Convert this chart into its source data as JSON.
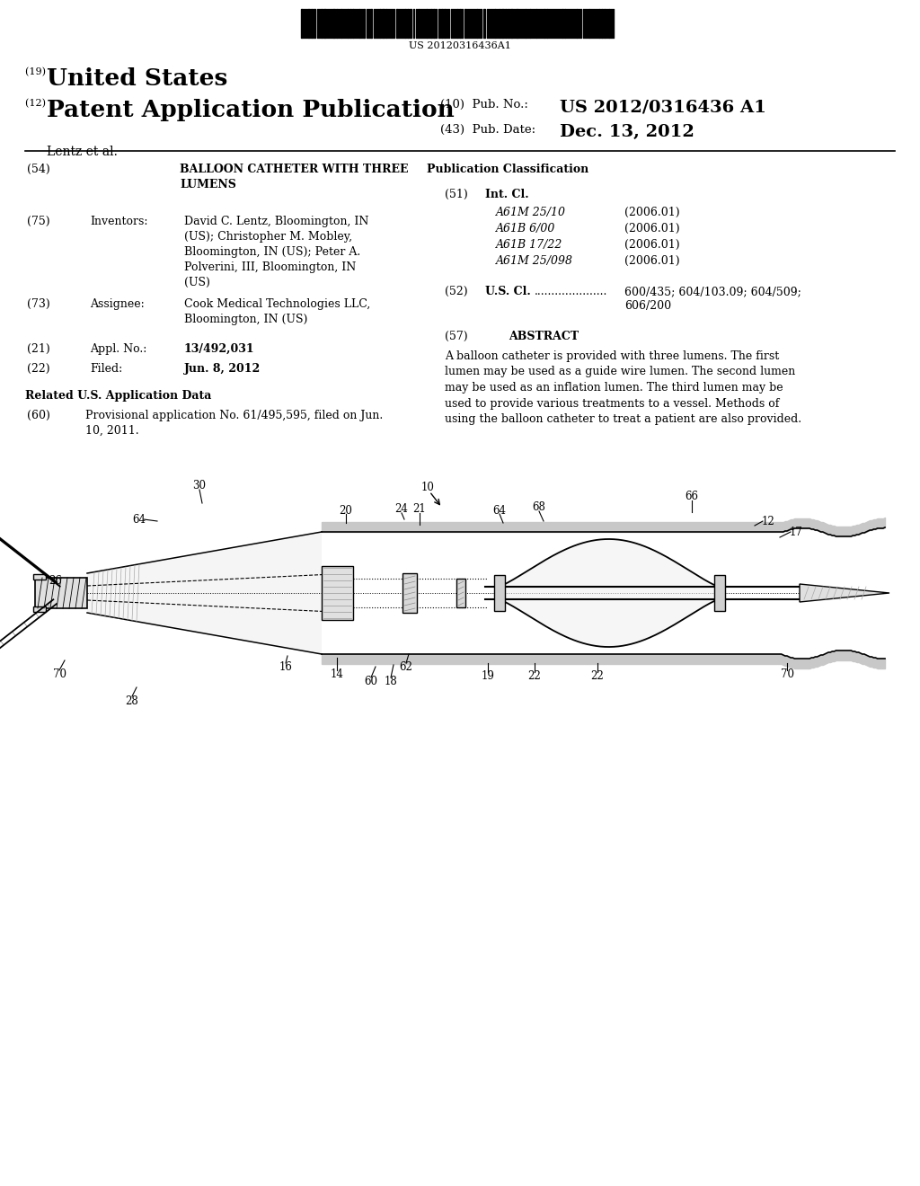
{
  "bg_color": "#ffffff",
  "barcode_text": "US 20120316436A1",
  "title19_prefix": "(19) ",
  "title19_text": "United States",
  "title12_prefix": "(12) ",
  "title12_text": "Patent Application Publication",
  "authors": "Lentz et al.",
  "pub_no_label": "(10)  Pub. No.:",
  "pub_no": "US 2012/0316436 A1",
  "pub_date_label": "(43)  Pub. Date:",
  "pub_date": "Dec. 13, 2012",
  "field54_label": "(54)",
  "field54": "BALLOON CATHETER WITH THREE\nLUMENS",
  "field75_label": "(75)",
  "field75_title": "Inventors:",
  "field75_text": "David C. Lentz, Bloomington, IN\n(US); Christopher M. Mobley,\nBloomington, IN (US); Peter A.\nPolverini, III, Bloomington, IN\n(US)",
  "field73_label": "(73)",
  "field73_title": "Assignee:",
  "field73_text": "Cook Medical Technologies LLC,\nBloomington, IN (US)",
  "field21_label": "(21)",
  "field21_title": "Appl. No.:",
  "field21_text": "13/492,031",
  "field22_label": "(22)",
  "field22_title": "Filed:",
  "field22_text": "Jun. 8, 2012",
  "related_title": "Related U.S. Application Data",
  "field60_label": "(60)",
  "field60_text": "Provisional application No. 61/495,595, filed on Jun.\n10, 2011.",
  "pub_class_title": "Publication Classification",
  "field51_label": "(51)",
  "field51_title": "Int. Cl.",
  "int_cl_items": [
    [
      "A61M 25/10",
      "(2006.01)"
    ],
    [
      "A61B 6/00",
      "(2006.01)"
    ],
    [
      "A61B 17/22",
      "(2006.01)"
    ],
    [
      "A61M 25/098",
      "(2006.01)"
    ]
  ],
  "field52_label": "(52)",
  "field52_title": "U.S. Cl.",
  "field52_dots": ".....................",
  "field52_text1": "600/435; 604/103.09; 604/509;",
  "field52_text2": "606/200",
  "field57_label": "(57)",
  "field57_title": "ABSTRACT",
  "abstract_text": "A balloon catheter is provided with three lumens. The first\nlumen may be used as a guide wire lumen. The second lumen\nmay be used as an inflation lumen. The third lumen may be\nused to provide various treatments to a vessel. Methods of\nusing the balloon catheter to treat a patient are also provided."
}
